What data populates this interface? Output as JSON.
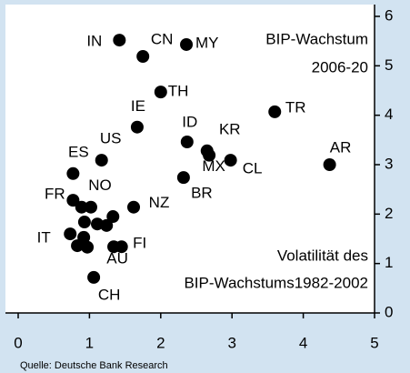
{
  "chart_data": {
    "type": "scatter",
    "annotations": [
      "BIP-Wachstum",
      "2006-20",
      "Volatilität des",
      "BIP-Wachstums1982-2002"
    ],
    "source": "Quelle: Deutsche Bank Research",
    "color": "#000000",
    "xlim": [
      0,
      5
    ],
    "xticks": [
      0,
      1,
      2,
      3,
      4,
      5
    ],
    "ylim": [
      0,
      6
    ],
    "yticks": [
      0,
      1,
      2,
      3,
      4,
      5,
      6
    ],
    "points": [
      {
        "label": "IN",
        "x": 1.42,
        "y": 5.52
      },
      {
        "label": "CN",
        "x": 1.75,
        "y": 5.19
      },
      {
        "label": "MY",
        "x": 2.36,
        "y": 5.43
      },
      {
        "label": "TH",
        "x": 2.0,
        "y": 4.47
      },
      {
        "label": "IE",
        "x": 1.67,
        "y": 3.76
      },
      {
        "label": "US",
        "x": 1.17,
        "y": 3.09
      },
      {
        "label": "ES",
        "x": 0.77,
        "y": 2.82
      },
      {
        "label": "ID",
        "x": 2.37,
        "y": 3.46
      },
      {
        "label": "KR",
        "x": 2.65,
        "y": 3.28
      },
      {
        "label": "MX",
        "x": 2.68,
        "y": 3.19
      },
      {
        "label": "CL",
        "x": 2.98,
        "y": 3.09
      },
      {
        "label": "TR",
        "x": 3.6,
        "y": 4.07
      },
      {
        "label": "AR",
        "x": 4.37,
        "y": 3.0
      },
      {
        "label": "BR",
        "x": 2.32,
        "y": 2.74
      },
      {
        "label": "NZ",
        "x": 1.62,
        "y": 2.14
      },
      {
        "label": "FR",
        "x": 0.77,
        "y": 2.28
      },
      {
        "label": null,
        "x": 0.89,
        "y": 2.14
      },
      {
        "label": "NO",
        "x": 1.02,
        "y": 2.14
      },
      {
        "label": null,
        "x": 1.33,
        "y": 1.95
      },
      {
        "label": null,
        "x": 0.93,
        "y": 1.84
      },
      {
        "label": null,
        "x": 1.11,
        "y": 1.8
      },
      {
        "label": null,
        "x": 1.24,
        "y": 1.77
      },
      {
        "label": "IT",
        "x": 0.73,
        "y": 1.6
      },
      {
        "label": null,
        "x": 0.92,
        "y": 1.53
      },
      {
        "label": null,
        "x": 0.83,
        "y": 1.36
      },
      {
        "label": null,
        "x": 0.97,
        "y": 1.33
      },
      {
        "label": "AU",
        "x": 1.34,
        "y": 1.34
      },
      {
        "label": "FI",
        "x": 1.45,
        "y": 1.34
      },
      {
        "label": "CH",
        "x": 1.06,
        "y": 0.72
      }
    ]
  }
}
